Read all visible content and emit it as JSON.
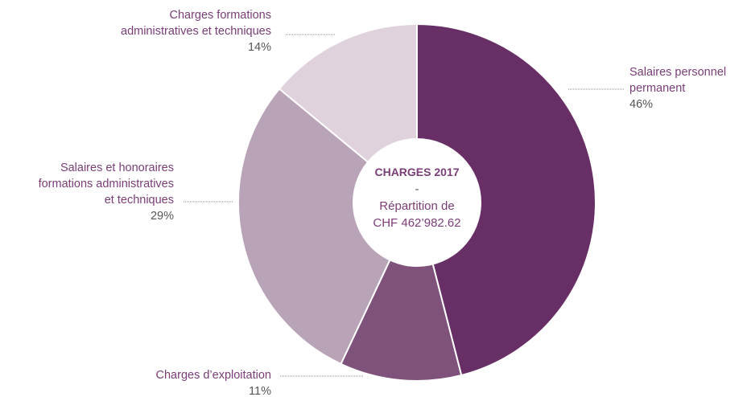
{
  "chart_data": {
    "type": "donut",
    "center_text": [
      "CHARGES 2017",
      "-",
      "Répartition de",
      "CHF 462’982.62"
    ],
    "categories": [
      "Salaires personnel\npermanent",
      "Charges d’exploitation",
      "Salaires et honoraires\nformations administratives\net techniques",
      "Charges formations\nadministratives et techniques"
    ],
    "values": [
      46,
      11,
      29,
      14
    ],
    "value_labels": [
      "46%",
      "11%",
      "29%",
      "14%"
    ],
    "colors": [
      "#682f66",
      "#7f527c",
      "#b9a3b7",
      "#dfd2dd"
    ]
  }
}
